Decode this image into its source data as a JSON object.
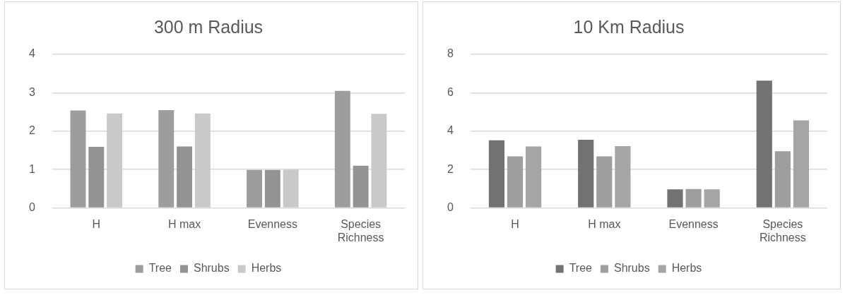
{
  "chart_data": [
    {
      "type": "bar",
      "title": "300 m Radius",
      "categories": [
        "H",
        "H max",
        "Evenness",
        "Species Richness"
      ],
      "series": [
        {
          "name": "Tree",
          "color": "#9d9d9d",
          "values": [
            2.54,
            2.55,
            0.99,
            3.05
          ]
        },
        {
          "name": "Shrubs",
          "color": "#939393",
          "values": [
            1.59,
            1.6,
            0.99,
            1.1
          ]
        },
        {
          "name": "Herbs",
          "color": "#c9c9c9",
          "values": [
            2.46,
            2.46,
            1.0,
            2.45
          ]
        }
      ],
      "ylim": [
        0,
        4
      ],
      "yticks": [
        0,
        1,
        2,
        3,
        4
      ],
      "grid": "y",
      "legend": "bottom"
    },
    {
      "type": "bar",
      "title": "10 Km Radius",
      "categories": [
        "H",
        "H max",
        "Evenness",
        "Species Richness"
      ],
      "series": [
        {
          "name": "Tree",
          "color": "#727272",
          "values": [
            3.52,
            3.55,
            0.97,
            6.63
          ]
        },
        {
          "name": "Shrubs",
          "color": "#9e9e9e",
          "values": [
            2.69,
            2.69,
            0.99,
            2.95
          ]
        },
        {
          "name": "Herbs",
          "color": "#a5a5a5",
          "values": [
            3.2,
            3.22,
            0.97,
            4.56
          ]
        }
      ],
      "ylim": [
        0,
        8
      ],
      "yticks": [
        0,
        2,
        4,
        6,
        8
      ],
      "grid": "y",
      "legend": "bottom"
    }
  ]
}
